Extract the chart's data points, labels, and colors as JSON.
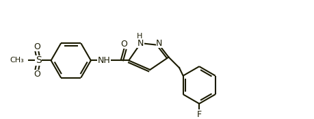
{
  "bg_color": "#ffffff",
  "line_color": "#1a1a00",
  "line_width": 1.5,
  "font_size": 9,
  "figsize": [
    4.6,
    1.74
  ],
  "dpi": 100,
  "xlim": [
    0,
    460
  ],
  "ylim": [
    0,
    174
  ]
}
